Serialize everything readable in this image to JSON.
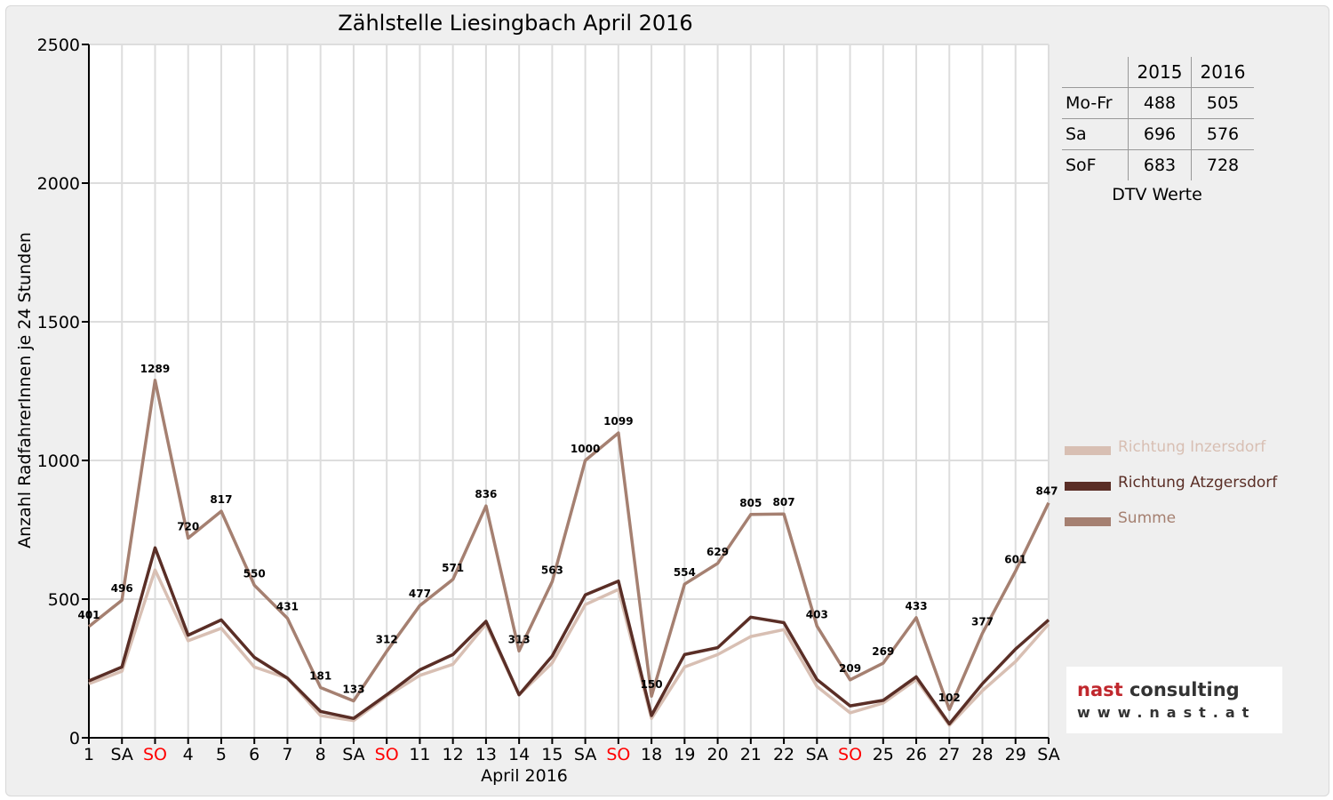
{
  "chart_data": {
    "type": "line",
    "title": "Zählstelle Liesingbach April 2016",
    "xlabel": "April 2016",
    "ylabel": "Anzahl RadfahrerInnen je 24 Stunden",
    "ylim": [
      0,
      2500
    ],
    "yticks": [
      0,
      500,
      1000,
      1500,
      2000,
      2500
    ],
    "categories": [
      "1",
      "SA",
      "SO",
      "4",
      "5",
      "6",
      "7",
      "8",
      "SA",
      "SO",
      "11",
      "12",
      "13",
      "14",
      "15",
      "SA",
      "SO",
      "18",
      "19",
      "20",
      "21",
      "22",
      "SA",
      "SO",
      "25",
      "26",
      "27",
      "28",
      "29",
      "SA"
    ],
    "sunday_label_color": "#ff0000",
    "grid": true,
    "legend_position": "right",
    "series": [
      {
        "name": "Richtung Inzersdorf",
        "color": "#d8bfb3",
        "values": [
          195,
          240,
          605,
          350,
          395,
          255,
          215,
          80,
          62,
          150,
          225,
          265,
          410,
          155,
          270,
          480,
          535,
          70,
          255,
          300,
          365,
          390,
          185,
          90,
          125,
          210,
          45,
          170,
          275,
          410
        ]
      },
      {
        "name": "Richtung Atzgersdorf",
        "color": "#5a2e26",
        "values": [
          205,
          255,
          685,
          370,
          425,
          290,
          215,
          95,
          70,
          155,
          245,
          300,
          420,
          155,
          295,
          515,
          565,
          80,
          300,
          325,
          435,
          415,
          210,
          115,
          135,
          220,
          50,
          195,
          320,
          425
        ]
      },
      {
        "name": "Summe",
        "color": "#a58071",
        "labeled": true,
        "values": [
          401,
          496,
          1289,
          720,
          817,
          550,
          431,
          181,
          133,
          312,
          477,
          571,
          836,
          313,
          563,
          1000,
          1099,
          150,
          554,
          629,
          805,
          807,
          403,
          209,
          269,
          433,
          102,
          377,
          601,
          847
        ]
      }
    ]
  },
  "dtv_table": {
    "headers": [
      "",
      "2015",
      "2016"
    ],
    "rows": [
      {
        "label": "Mo-Fr",
        "v2015": "488",
        "v2016": "505"
      },
      {
        "label": "Sa",
        "v2015": "696",
        "v2016": "576"
      },
      {
        "label": "SoF",
        "v2015": "683",
        "v2016": "728"
      }
    ],
    "caption": "DTV Werte"
  },
  "logo": {
    "name_part1": "nast",
    "name_part2": " consulting",
    "url": "www.nast.at",
    "color1": "#c0272d",
    "color2": "#333333"
  }
}
